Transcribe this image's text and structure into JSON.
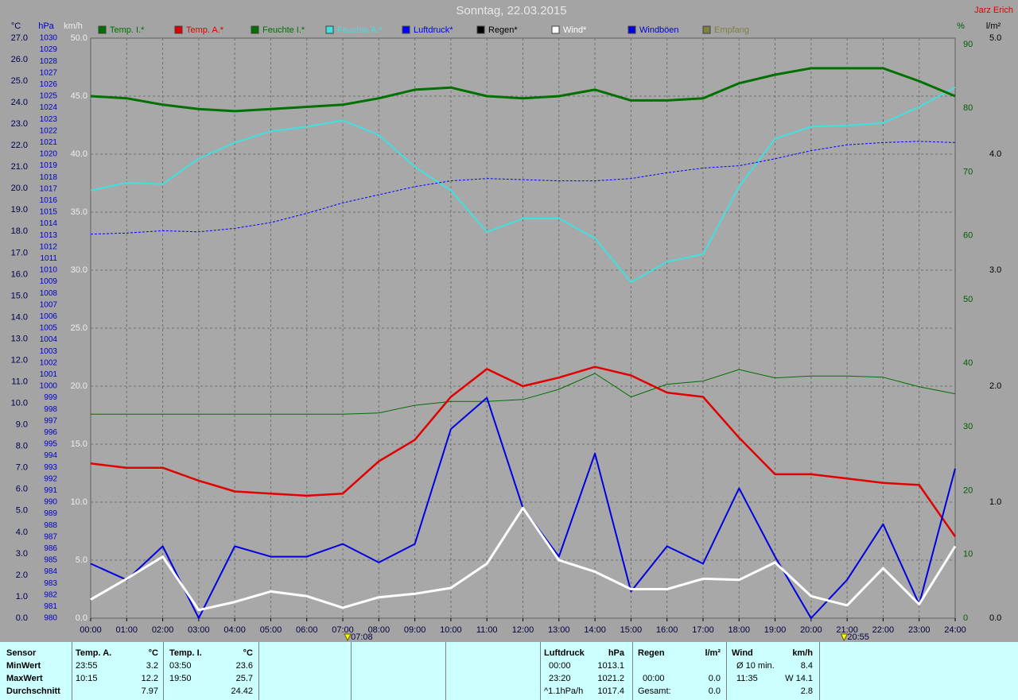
{
  "chart_data": {
    "type": "line",
    "title": "Sonntag, 22.03.2015",
    "author": "Jarz Erich",
    "grid": true,
    "categories": [
      "00:00",
      "01:00",
      "02:00",
      "03:00",
      "04:00",
      "05:00",
      "06:00",
      "07:00",
      "08:00",
      "09:00",
      "10:00",
      "11:00",
      "12:00",
      "13:00",
      "14:00",
      "15:00",
      "16:00",
      "17:00",
      "18:00",
      "19:00",
      "20:00",
      "21:00",
      "22:00",
      "23:00",
      "24:00"
    ],
    "sun_events": [
      "07:08",
      "20:55"
    ],
    "axes": [
      {
        "unit": "°C",
        "lim": [
          0,
          27
        ],
        "ticks": [
          {
            "value": 0,
            "label": "0.0"
          },
          {
            "value": 1,
            "label": "1.0"
          },
          {
            "value": 2,
            "label": "2.0"
          },
          {
            "value": 3,
            "label": "3.0"
          },
          {
            "value": 4,
            "label": "4.0"
          },
          {
            "value": 5,
            "label": "5.0"
          },
          {
            "value": 6,
            "label": "6.0"
          },
          {
            "value": 7,
            "label": "7.0"
          },
          {
            "value": 8,
            "label": "8.0"
          },
          {
            "value": 9,
            "label": "9.0"
          },
          {
            "value": 10,
            "label": "10.0"
          },
          {
            "value": 11,
            "label": "11.0"
          },
          {
            "value": 12,
            "label": "12.0"
          },
          {
            "value": 13,
            "label": "13.0"
          },
          {
            "value": 14,
            "label": "14.0"
          },
          {
            "value": 15,
            "label": "15.0"
          },
          {
            "value": 16,
            "label": "16.0"
          },
          {
            "value": 17,
            "label": "17.0"
          },
          {
            "value": 18,
            "label": "18.0"
          },
          {
            "value": 19,
            "label": "19.0"
          },
          {
            "value": 20,
            "label": "20.0"
          },
          {
            "value": 21,
            "label": "21.0"
          },
          {
            "value": 22,
            "label": "22.0"
          },
          {
            "value": 23,
            "label": "23.0"
          },
          {
            "value": 24,
            "label": "24.0"
          },
          {
            "value": 25,
            "label": "25.0"
          },
          {
            "value": 26,
            "label": "26.0"
          },
          {
            "value": 27,
            "label": "27.0"
          }
        ]
      },
      {
        "unit": "hPa",
        "lim": [
          980,
          1030
        ],
        "ticks": [
          980,
          981,
          982,
          983,
          984,
          985,
          986,
          987,
          988,
          989,
          990,
          991,
          992,
          993,
          994,
          995,
          996,
          997,
          998,
          999,
          1000,
          1001,
          1002,
          1003,
          1004,
          1005,
          1006,
          1007,
          1008,
          1009,
          1010,
          1011,
          1012,
          1013,
          1014,
          1015,
          1016,
          1017,
          1018,
          1019,
          1020,
          1021,
          1022,
          1023,
          1024,
          1025,
          1026,
          1027,
          1028,
          1029,
          1030
        ]
      },
      {
        "unit": "km/h",
        "lim": [
          0,
          50
        ],
        "ticks": [
          {
            "value": 0,
            "label": "0.0"
          },
          {
            "value": 5,
            "label": "5.0"
          },
          {
            "value": 10,
            "label": "10.0"
          },
          {
            "value": 15,
            "label": "15.0"
          },
          {
            "value": 20,
            "label": "20.0"
          },
          {
            "value": 25,
            "label": "25.0"
          },
          {
            "value": 30,
            "label": "30.0"
          },
          {
            "value": 35,
            "label": "35.0"
          },
          {
            "value": 40,
            "label": "40.0"
          },
          {
            "value": 45,
            "label": "45.0"
          },
          {
            "value": 50,
            "label": "50.0"
          }
        ]
      },
      {
        "unit": "%",
        "lim": [
          0,
          91
        ],
        "ticks": [
          0,
          10,
          20,
          30,
          40,
          50,
          60,
          70,
          80,
          90
        ]
      },
      {
        "unit": "l/m²",
        "lim": [
          0,
          5
        ],
        "ticks": [
          {
            "value": 0,
            "label": "0.0"
          },
          {
            "value": 1,
            "label": "1.0"
          },
          {
            "value": 2,
            "label": "2.0"
          },
          {
            "value": 3,
            "label": "3.0"
          },
          {
            "value": 4,
            "label": "4.0"
          },
          {
            "value": 5,
            "label": "5.0"
          }
        ]
      }
    ],
    "series": [
      {
        "name": "Temp. I.*",
        "color": "#007000",
        "axis": 0,
        "values": [
          24.3,
          24.2,
          23.9,
          23.7,
          23.6,
          23.7,
          23.8,
          23.9,
          24.2,
          24.6,
          24.7,
          24.3,
          24.2,
          24.3,
          24.6,
          24.1,
          24.1,
          24.2,
          24.9,
          25.3,
          25.6,
          25.6,
          25.6,
          25.0,
          24.3
        ]
      },
      {
        "name": "Temp. A.*",
        "color": "#e00000",
        "axis": 0,
        "values": [
          7.2,
          7.0,
          7.0,
          6.4,
          5.9,
          5.8,
          5.7,
          5.8,
          7.3,
          8.3,
          10.3,
          11.6,
          10.8,
          11.2,
          11.7,
          11.3,
          10.5,
          10.3,
          8.4,
          6.7,
          6.7,
          6.5,
          6.3,
          6.2,
          3.8
        ]
      },
      {
        "name": "Feuchte I.*",
        "color": "#007000",
        "axis": 3,
        "values": [
          32,
          32,
          32,
          32,
          32,
          32,
          32,
          32,
          32.2,
          33.4,
          34,
          34,
          34.3,
          35.9,
          38.4,
          34.7,
          36.7,
          37.2,
          39,
          37.7,
          38,
          38,
          37.8,
          36.3,
          35.2
        ]
      },
      {
        "name": "Feuchte A.*",
        "color": "#40e0e0",
        "axis": 3,
        "values": [
          67.1,
          68.3,
          68.1,
          72.1,
          74.6,
          76.4,
          77.1,
          78.1,
          75.8,
          70.8,
          67.1,
          60.6,
          62.7,
          62.7,
          59.6,
          52.7,
          55.9,
          57.1,
          67.7,
          75.2,
          77.1,
          77.3,
          77.7,
          80.2,
          83.3
        ]
      },
      {
        "name": "Luftdruck*",
        "color": "#0000ff",
        "axis": 1,
        "values": [
          1013.1,
          1013.2,
          1013.4,
          1013.3,
          1013.6,
          1014.1,
          1014.9,
          1015.8,
          1016.5,
          1017.2,
          1017.7,
          1017.9,
          1017.8,
          1017.7,
          1017.7,
          1017.9,
          1018.4,
          1018.8,
          1019.0,
          1019.6,
          1020.3,
          1020.8,
          1021.0,
          1021.1,
          1021.0
        ]
      },
      {
        "name": "Regen*",
        "color": "#000000",
        "axis": 4
      },
      {
        "name": "Wind*",
        "color": "#ffffff",
        "axis": 2,
        "values": [
          1.6,
          3.4,
          5.3,
          0.7,
          1.4,
          2.3,
          1.9,
          0.9,
          1.8,
          2.1,
          2.6,
          4.7,
          9.5,
          5.0,
          4.0,
          2.5,
          2.5,
          3.4,
          3.3,
          4.8,
          1.9,
          1.1,
          4.3,
          1.2,
          6.2
        ]
      },
      {
        "name": "Windböen",
        "color": "#0000e0",
        "axis": 2,
        "values": [
          4.7,
          3.3,
          6.2,
          0,
          6.2,
          5.3,
          5.3,
          6.4,
          4.8,
          6.4,
          16.3,
          19.0,
          9.5,
          5.3,
          14.2,
          2.3,
          6.2,
          4.7,
          11.2,
          5.3,
          0,
          3.3,
          8.1,
          1.2,
          12.9
        ]
      },
      {
        "name": "Empfang",
        "color": "#808040",
        "axis": 4
      }
    ]
  },
  "stats": {
    "header": "Sensor",
    "row_labels": [
      "MinWert",
      "MaxWert",
      "Durchschnitt"
    ],
    "groups": [
      {
        "name": "Temp. A.",
        "unit": "°C",
        "rows": [
          [
            "23:55",
            "3.2"
          ],
          [
            "10:15",
            "12.2"
          ],
          [
            null,
            "7.97"
          ]
        ]
      },
      {
        "name": "Temp. I.",
        "unit": "°C",
        "rows": [
          [
            "03:50",
            "23.6"
          ],
          [
            "19:50",
            "25.7"
          ],
          [
            null,
            "24.42"
          ]
        ]
      },
      {
        "name": "Luftdruck",
        "unit": "hPa",
        "rows": [
          [
            "00:00",
            "1013.1"
          ],
          [
            "23:20",
            "1021.2"
          ],
          [
            "^1.1hPa/h",
            "1017.4"
          ]
        ]
      },
      {
        "name": "Regen",
        "unit": "l/m²",
        "rows": [
          null,
          [
            "00:00",
            "0.0"
          ],
          [
            "Gesamt:",
            "0.0"
          ]
        ]
      },
      {
        "name": "Wind",
        "unit": "km/h",
        "rows": [
          [
            "Ø 10 min.",
            "8.4"
          ],
          [
            "11:35",
            "W 14.1"
          ],
          [
            null,
            "2.8"
          ]
        ]
      }
    ]
  }
}
